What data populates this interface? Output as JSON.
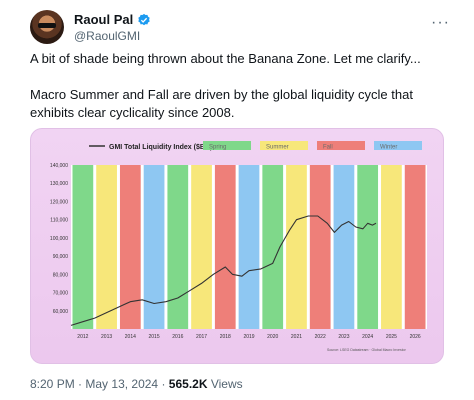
{
  "author": {
    "name": "Raoul Pal",
    "handle": "@RaoulGMI",
    "verified": true,
    "more_icon": "more-dots-icon"
  },
  "tweet": {
    "line1": "A bit of shade being thrown about the Banana Zone. Let me clarify...",
    "line2": "Macro Summer and Fall are driven by the global liquidity cycle that exhibits clear cyclicality since 2008."
  },
  "footer": {
    "time": "8:20 PM",
    "separator": "·",
    "date": "May 13, 2024",
    "views_count": "565.2K",
    "views_label": "Views"
  },
  "colors": {
    "green": "#7fd88a",
    "yellow": "#f7e77a",
    "red": "#ee7f79",
    "blue": "#8ec7f2",
    "line": "#333333"
  },
  "chart_data": {
    "type": "line",
    "title": "GMI Total Liquidity Index ($BN)",
    "legend": [
      "Spring",
      "Summer",
      "Fall",
      "Winter"
    ],
    "source": "Source: LSEG Datastream · Global Macro Investor",
    "yticks": [
      60000,
      70000,
      80000,
      90000,
      100000,
      110000,
      120000,
      130000,
      140000
    ],
    "ytick_labels": [
      "60,000",
      "70,000",
      "80,000",
      "90,000",
      "100,000",
      "110,000",
      "120,000",
      "130,000",
      "140,000"
    ],
    "xticks": [
      "2012",
      "2013",
      "2014",
      "2015",
      "2016",
      "2017",
      "2018",
      "2019",
      "2020",
      "2021",
      "2022",
      "2023",
      "2024",
      "2025",
      "2026"
    ],
    "ylim": [
      50000,
      140000
    ],
    "bands": [
      "green",
      "yellow",
      "red",
      "blue",
      "green",
      "yellow",
      "red",
      "blue",
      "green",
      "yellow",
      "red",
      "blue",
      "green",
      "yellow",
      "red",
      "blue"
    ],
    "series": [
      {
        "x": [
          2011.5,
          2012,
          2012.5,
          2013,
          2013.5,
          2014,
          2014.5,
          2015,
          2015.5,
          2016,
          2016.5,
          2017,
          2017.5,
          2018,
          2018.3,
          2018.7,
          2019,
          2019.5,
          2020,
          2020.3,
          2020.7,
          2021,
          2021.5,
          2021.9,
          2022.3,
          2022.6,
          2022.9,
          2023.2,
          2023.5,
          2023.8,
          2024.0,
          2024.2,
          2024.35
        ],
        "y": [
          52000,
          54000,
          56000,
          59000,
          62000,
          65000,
          66000,
          64000,
          65000,
          67000,
          71000,
          75000,
          80000,
          84000,
          80000,
          79000,
          82000,
          83000,
          86000,
          95000,
          104000,
          110000,
          112000,
          112000,
          108000,
          103000,
          107000,
          109000,
          106000,
          105000,
          108000,
          107000,
          108000
        ]
      }
    ]
  }
}
